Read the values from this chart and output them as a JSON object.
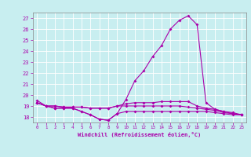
{
  "xlabel": "Windchill (Refroidissement éolien,°C)",
  "background_color": "#c8eef0",
  "grid_color": "#ffffff",
  "line_color": "#aa00aa",
  "hours": [
    0,
    1,
    2,
    3,
    4,
    5,
    6,
    7,
    8,
    9,
    10,
    11,
    12,
    13,
    14,
    15,
    16,
    17,
    18,
    19,
    20,
    21,
    22,
    23
  ],
  "temp": [
    19.5,
    19.0,
    18.8,
    18.8,
    18.8,
    18.5,
    18.2,
    17.8,
    17.7,
    18.3,
    19.6,
    21.3,
    22.2,
    23.5,
    24.5,
    26.0,
    26.8,
    27.2,
    26.4,
    19.3,
    18.7,
    18.5,
    18.3,
    18.2
  ],
  "line2": [
    19.3,
    19.0,
    19.0,
    18.9,
    18.9,
    18.9,
    18.8,
    18.8,
    18.8,
    19.0,
    19.2,
    19.3,
    19.3,
    19.3,
    19.4,
    19.4,
    19.4,
    19.4,
    19.0,
    18.8,
    18.7,
    18.5,
    18.4,
    18.2
  ],
  "line3": [
    19.3,
    19.0,
    19.0,
    18.9,
    18.9,
    18.9,
    18.8,
    18.8,
    18.8,
    19.0,
    19.0,
    19.0,
    19.0,
    19.0,
    19.0,
    19.0,
    19.0,
    18.9,
    18.8,
    18.7,
    18.6,
    18.4,
    18.3,
    18.2
  ],
  "line4": [
    19.3,
    19.0,
    18.8,
    18.8,
    18.8,
    18.5,
    18.2,
    17.8,
    17.7,
    18.3,
    18.5,
    18.5,
    18.5,
    18.5,
    18.5,
    18.5,
    18.5,
    18.5,
    18.5,
    18.5,
    18.4,
    18.3,
    18.2,
    18.2
  ],
  "ylim": [
    17.5,
    27.5
  ],
  "yticks": [
    18,
    19,
    20,
    21,
    22,
    23,
    24,
    25,
    26,
    27
  ],
  "xlim": [
    -0.5,
    23.5
  ]
}
